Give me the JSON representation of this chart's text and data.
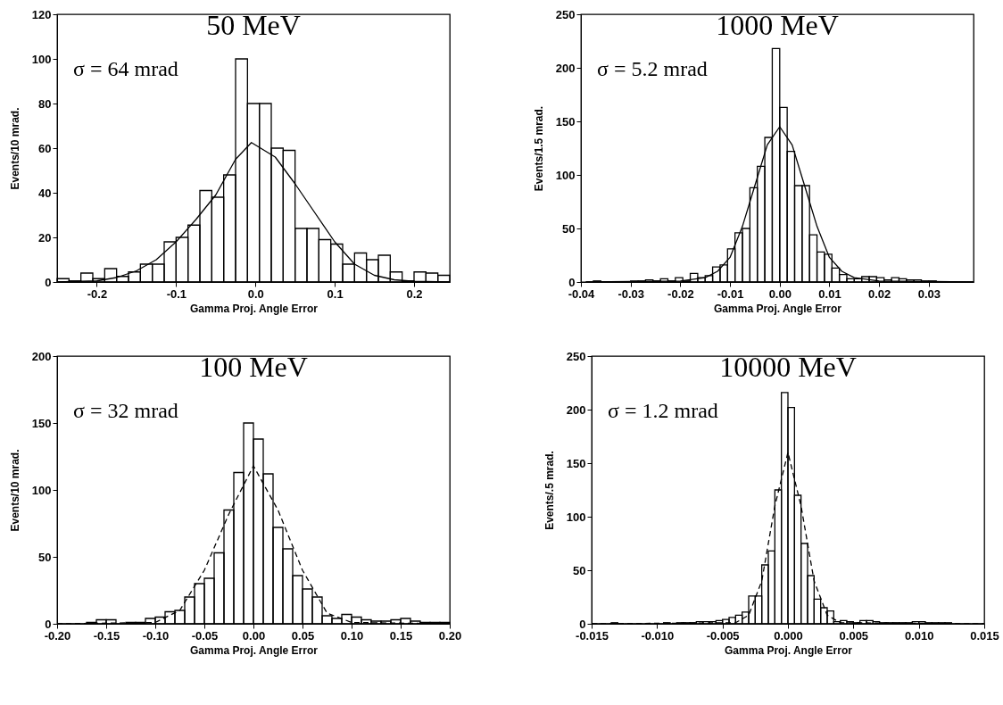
{
  "chart_data": [
    {
      "type": "histogram",
      "title": "50 MeV",
      "xlabel": "Gamma Proj. Angle Error",
      "ylabel": "Events/10 mrad.",
      "annotations": [
        "σ = 64 mrad"
      ],
      "color": "#000000",
      "bins": [
        -0.25,
        -0.235,
        -0.22,
        -0.205,
        -0.19,
        -0.175,
        -0.16,
        -0.145,
        -0.13,
        -0.115,
        -0.1,
        -0.085,
        -0.07,
        -0.055,
        -0.04,
        -0.025,
        -0.01,
        0.005,
        0.02,
        0.035,
        0.05,
        0.065,
        0.08,
        0.095,
        0.11,
        0.125,
        0.14,
        0.155,
        0.17,
        0.185,
        0.2,
        0.215,
        0.23,
        0.245
      ],
      "values": [
        1.5,
        0.5,
        4,
        1.5,
        6,
        2.5,
        4.5,
        8,
        8,
        18,
        20,
        25.5,
        41,
        38,
        48,
        100,
        80,
        80,
        60,
        59,
        24,
        24,
        19,
        17,
        8,
        13,
        10,
        12,
        4.5,
        0.5,
        4.5,
        4,
        3
      ],
      "series": [
        {
          "type": "line",
          "color": "#000000",
          "line_style": "solid",
          "x": [
            -0.25,
            -0.2,
            -0.175,
            -0.15,
            -0.125,
            -0.1,
            -0.075,
            -0.05,
            -0.025,
            -0.005,
            0.025,
            0.05,
            0.075,
            0.1,
            0.125,
            0.15,
            0.175,
            0.2,
            0.245
          ],
          "values": [
            0,
            0.5,
            2,
            5,
            10,
            18,
            28,
            39,
            55,
            62.5,
            56,
            44,
            31,
            18,
            8,
            3,
            1,
            0.3,
            0
          ]
        }
      ],
      "xlim": [
        -0.25,
        0.245
      ],
      "xticks": [
        -0.2,
        -0.1,
        {
          "value": 0,
          "label": "0.0"
        },
        0.1,
        0.2
      ],
      "ylim": [
        0,
        120
      ],
      "yticks": [
        0,
        20,
        40,
        60,
        80,
        100,
        120
      ]
    },
    {
      "type": "histogram",
      "title": "1000 MeV",
      "xlabel": "Gamma Proj. Angle Error",
      "ylabel": "Events/1.5 mrad.",
      "annotations": [
        "σ = 5.2 mrad"
      ],
      "color": "#000000",
      "bins": [
        -0.039,
        -0.0375,
        -0.036,
        -0.0345,
        -0.033,
        -0.0315,
        -0.03,
        -0.0285,
        -0.027,
        -0.0255,
        -0.024,
        -0.0225,
        -0.021,
        -0.0195,
        -0.018,
        -0.0165,
        -0.015,
        -0.0135,
        -0.012,
        -0.0105,
        -0.009,
        -0.0075,
        -0.006,
        -0.0045,
        -0.003,
        -0.0015,
        0,
        0.0015,
        0.003,
        0.0045,
        0.006,
        0.0075,
        0.009,
        0.0105,
        0.012,
        0.0135,
        0.015,
        0.0165,
        0.018,
        0.0195,
        0.021,
        0.0225,
        0.024,
        0.0255,
        0.027,
        0.0285,
        0.03,
        0.0315,
        0.033,
        0.0345,
        0.036,
        0.0375,
        0.039
      ],
      "values": [
        0,
        1,
        0,
        0,
        0,
        0,
        1,
        1,
        2,
        1,
        3,
        1,
        4,
        1,
        8,
        4,
        6,
        14,
        16,
        31,
        46,
        50,
        88,
        108,
        135,
        218,
        163,
        122,
        90,
        90,
        44,
        28,
        26,
        13,
        7,
        3,
        3,
        5,
        5,
        4,
        2,
        4,
        3,
        2,
        2,
        1,
        1,
        0,
        0,
        0,
        0,
        0
      ],
      "series": [
        {
          "type": "line",
          "color": "#000000",
          "line_style": "solid",
          "x": [
            -0.039,
            -0.02,
            -0.015,
            -0.0125,
            -0.01,
            -0.0075,
            -0.005,
            -0.0025,
            0,
            0.0025,
            0.005,
            0.0075,
            0.01,
            0.0125,
            0.015,
            0.02,
            0.039
          ],
          "values": [
            0,
            1,
            4,
            10,
            23,
            52,
            90,
            128,
            145,
            128,
            90,
            52,
            23,
            10,
            4,
            1,
            0
          ]
        }
      ],
      "xlim": [
        -0.04,
        0.039
      ],
      "xticks": [
        -0.04,
        -0.03,
        -0.02,
        -0.01,
        {
          "value": 0,
          "label": "0.00"
        },
        0.01,
        0.02,
        0.03
      ],
      "ylim": [
        0,
        250
      ],
      "yticks": [
        0,
        50,
        100,
        150,
        200,
        250
      ]
    },
    {
      "type": "histogram",
      "title": "100 MeV",
      "xlabel": "Gamma Proj. Angle Error",
      "ylabel": "Events/10 mrad.",
      "annotations": [
        "σ = 32 mrad"
      ],
      "color": "#000000",
      "bins": [
        -0.2,
        -0.19,
        -0.18,
        -0.17,
        -0.16,
        -0.15,
        -0.14,
        -0.13,
        -0.12,
        -0.11,
        -0.1,
        -0.09,
        -0.08,
        -0.07,
        -0.06,
        -0.05,
        -0.04,
        -0.03,
        -0.02,
        -0.01,
        0,
        0.01,
        0.02,
        0.03,
        0.04,
        0.05,
        0.06,
        0.07,
        0.08,
        0.09,
        0.1,
        0.11,
        0.12,
        0.13,
        0.14,
        0.15,
        0.16,
        0.17,
        0.18,
        0.19,
        0.2
      ],
      "values": [
        0,
        0,
        0,
        1,
        3,
        3,
        0,
        1,
        1,
        4,
        5,
        9,
        10,
        20,
        30,
        34,
        53,
        85,
        113,
        150,
        138,
        112,
        72,
        56,
        36,
        26,
        20,
        6,
        4,
        7,
        5,
        3,
        2,
        2,
        3,
        4,
        2,
        1,
        1,
        1
      ],
      "series": [
        {
          "type": "line",
          "color": "#000000",
          "line_style": "dashed",
          "x": [
            -0.2,
            -0.1,
            -0.075,
            -0.05,
            -0.025,
            0,
            0.025,
            0.05,
            0.075,
            0.1,
            0.2
          ],
          "values": [
            0,
            1,
            10,
            40,
            82,
            118,
            85,
            40,
            8,
            1,
            0
          ]
        }
      ],
      "xlim": [
        -0.2,
        0.2
      ],
      "xticks": [
        {
          "value": -0.2,
          "label": "-0.20"
        },
        -0.15,
        {
          "value": -0.1,
          "label": "-0.10"
        },
        -0.05,
        {
          "value": 0,
          "label": "0.00"
        },
        0.05,
        {
          "value": 0.1,
          "label": "0.10"
        },
        0.15,
        {
          "value": 0.2,
          "label": "0.20"
        }
      ],
      "ylim": [
        0,
        200
      ],
      "yticks": [
        0,
        50,
        100,
        150,
        200
      ]
    },
    {
      "type": "histogram",
      "title": "10000 MeV",
      "xlabel": "Gamma Proj. Angle Error",
      "ylabel": "Events/.5 mrad.",
      "annotations": [
        "σ = 1.2 mrad"
      ],
      "color": "#000000",
      "bins": [
        -0.015,
        -0.0145,
        -0.014,
        -0.0135,
        -0.013,
        -0.0125,
        -0.012,
        -0.0115,
        -0.011,
        -0.0105,
        -0.01,
        -0.0095,
        -0.009,
        -0.0085,
        -0.008,
        -0.0075,
        -0.007,
        -0.0065,
        -0.006,
        -0.0055,
        -0.005,
        -0.0045,
        -0.004,
        -0.0035,
        -0.003,
        -0.0025,
        -0.002,
        -0.0015,
        -0.001,
        -0.0005,
        0,
        0.0005,
        0.001,
        0.0015,
        0.002,
        0.0025,
        0.003,
        0.0035,
        0.004,
        0.0045,
        0.005,
        0.0055,
        0.006,
        0.0065,
        0.007,
        0.0075,
        0.008,
        0.0085,
        0.009,
        0.0095,
        0.01,
        0.0105,
        0.011,
        0.0115,
        0.012,
        0.0125,
        0.013,
        0.0135,
        0.014,
        0.0145,
        0.015
      ],
      "values": [
        0,
        0,
        0,
        1,
        0,
        0,
        0,
        0,
        0,
        0,
        0,
        1,
        0,
        1,
        1,
        1,
        2,
        2,
        2,
        3,
        4,
        6,
        8,
        11,
        26,
        26,
        55,
        68,
        125,
        216,
        202,
        120,
        75,
        45,
        23,
        15,
        12,
        2,
        3,
        2,
        1,
        3,
        3,
        2,
        1,
        1,
        1,
        1,
        1,
        2,
        2,
        1,
        1,
        1,
        1,
        0,
        0,
        0,
        0,
        0
      ],
      "series": [
        {
          "type": "line",
          "color": "#000000",
          "line_style": "dashed",
          "x": [
            -0.015,
            -0.004,
            -0.003,
            -0.002,
            -0.001,
            0,
            0.001,
            0.002,
            0.003,
            0.004,
            0.015
          ],
          "values": [
            0,
            1,
            8,
            40,
            110,
            160,
            110,
            40,
            8,
            1,
            0
          ]
        }
      ],
      "xlim": [
        -0.015,
        0.015
      ],
      "xticks": [
        -0.015,
        {
          "value": -0.01,
          "label": "-0.010"
        },
        -0.005,
        {
          "value": 0,
          "label": "0.000"
        },
        0.005,
        {
          "value": 0.01,
          "label": "0.010"
        },
        0.015
      ],
      "ylim": [
        0,
        250
      ],
      "yticks": [
        0,
        50,
        100,
        150,
        200,
        250
      ]
    }
  ]
}
